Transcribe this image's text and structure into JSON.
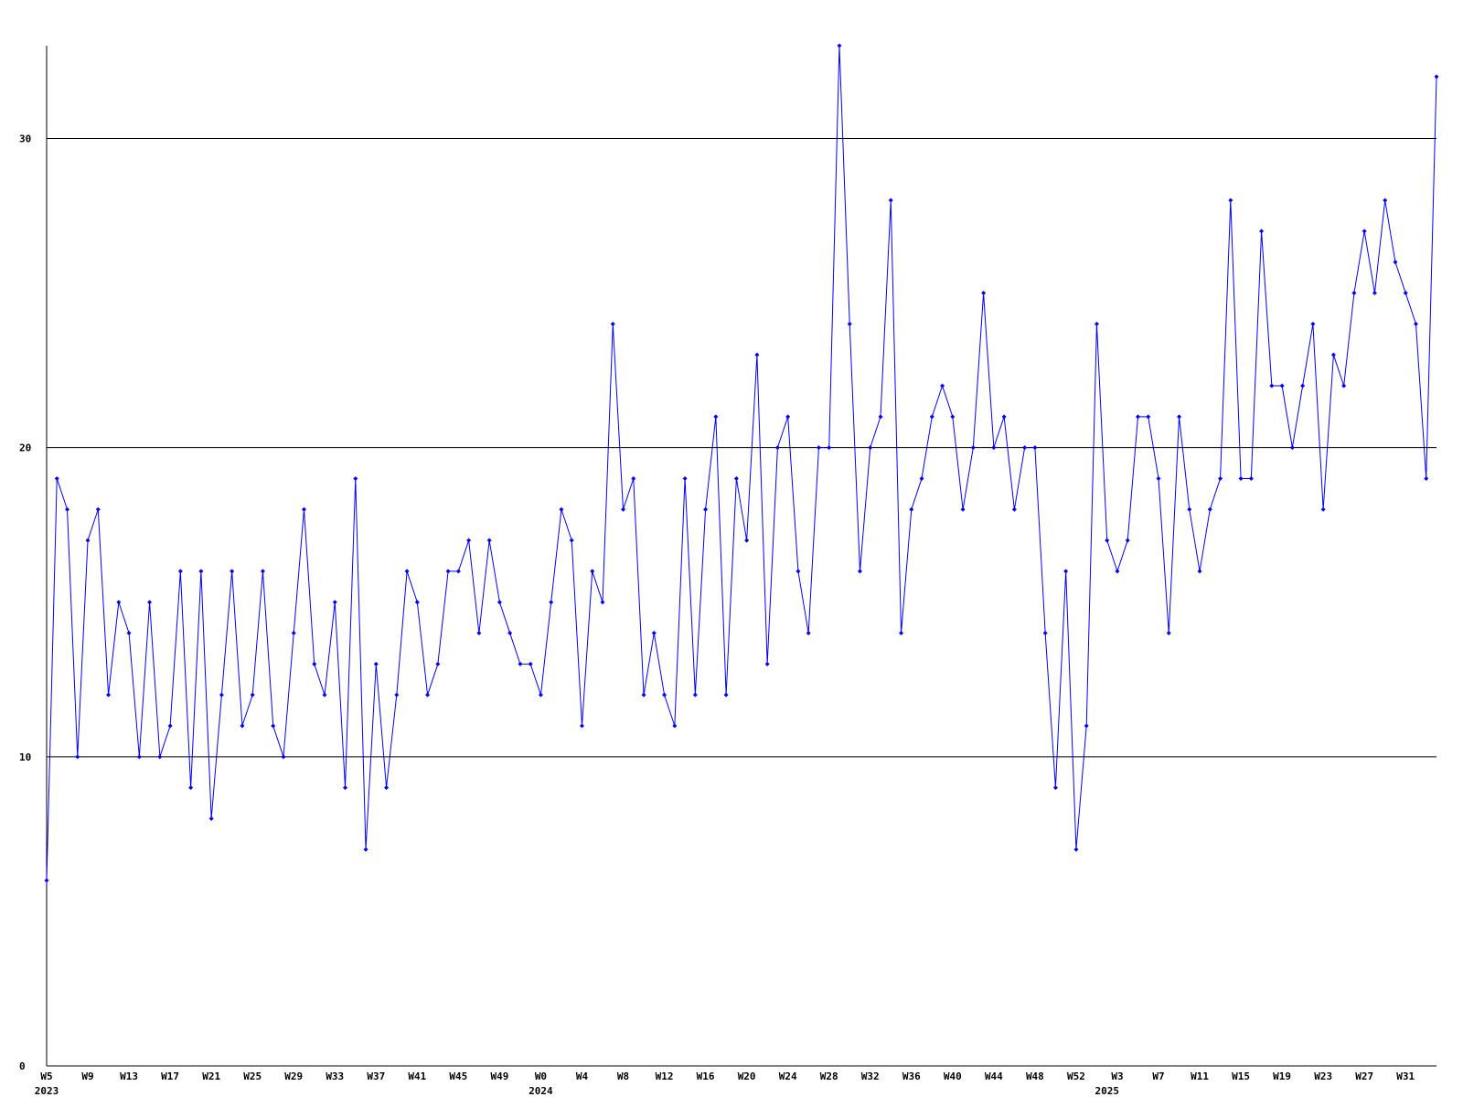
{
  "chart_data": {
    "type": "line",
    "categories": [
      "W5",
      null,
      null,
      null,
      "W9",
      null,
      null,
      null,
      "W13",
      null,
      null,
      null,
      "W17",
      null,
      null,
      null,
      "W21",
      null,
      null,
      null,
      "W25",
      null,
      null,
      null,
      "W29",
      null,
      null,
      null,
      "W33",
      null,
      null,
      null,
      "W37",
      null,
      null,
      null,
      "W41",
      null,
      null,
      null,
      "W45",
      null,
      null,
      null,
      "W49",
      null,
      null,
      null,
      "W0",
      null,
      null,
      null,
      "W4",
      null,
      null,
      null,
      "W8",
      null,
      null,
      null,
      "W12",
      null,
      null,
      null,
      "W16",
      null,
      null,
      null,
      "W20",
      null,
      null,
      null,
      "W24",
      null,
      null,
      null,
      "W28",
      null,
      null,
      null,
      "W32",
      null,
      null,
      null,
      "W36",
      null,
      null,
      null,
      "W40",
      null,
      null,
      null,
      "W44",
      null,
      null,
      null,
      "W48",
      null,
      null,
      null,
      "W52",
      null,
      null,
      null,
      "W3",
      null,
      null,
      null,
      "W7",
      null,
      null,
      null,
      "W11",
      null,
      null,
      null,
      "W15",
      null,
      null,
      null,
      "W19",
      null,
      null,
      null,
      "W23",
      null,
      null,
      null,
      "W27",
      null,
      null,
      null,
      "W31",
      null,
      null,
      null
    ],
    "years": [
      "2023",
      null,
      null,
      null,
      null,
      null,
      null,
      null,
      null,
      null,
      null,
      null,
      null,
      null,
      null,
      null,
      null,
      null,
      null,
      null,
      null,
      null,
      null,
      null,
      null,
      null,
      null,
      null,
      null,
      null,
      null,
      null,
      null,
      null,
      null,
      null,
      null,
      null,
      null,
      null,
      null,
      null,
      null,
      null,
      null,
      null,
      null,
      null,
      "2024",
      null,
      null,
      null,
      null,
      null,
      null,
      null,
      null,
      null,
      null,
      null,
      null,
      null,
      null,
      null,
      null,
      null,
      null,
      null,
      null,
      null,
      null,
      null,
      null,
      null,
      null,
      null,
      null,
      null,
      null,
      null,
      null,
      null,
      null,
      null,
      null,
      null,
      null,
      null,
      null,
      null,
      null,
      null,
      null,
      null,
      null,
      null,
      null,
      null,
      null,
      null,
      null,
      null,
      null,
      "2025",
      null,
      null,
      null,
      null,
      null,
      null,
      null,
      null,
      null,
      null,
      null,
      null,
      null,
      null,
      null,
      null,
      null,
      null,
      null,
      null,
      null,
      null,
      null,
      null,
      null,
      null,
      null,
      null,
      null,
      null,
      null,
      null,
      null,
      null
    ],
    "series": [
      {
        "color": "#0000ff",
        "values": [
          6,
          19,
          18,
          10,
          17,
          18,
          12,
          15,
          14,
          10,
          15,
          10,
          11,
          16,
          9,
          16,
          8,
          12,
          16,
          11,
          12,
          16,
          11,
          10,
          14,
          18,
          13,
          12,
          15,
          9,
          19,
          7,
          13,
          9,
          12,
          16,
          15,
          12,
          13,
          16,
          16,
          17,
          14,
          17,
          15,
          14,
          13,
          13,
          12,
          15,
          18,
          17,
          11,
          16,
          15,
          24,
          18,
          19,
          12,
          14,
          12,
          11,
          19,
          12,
          18,
          21,
          12,
          19,
          17,
          23,
          13,
          20,
          21,
          16,
          14,
          20,
          20,
          33,
          24,
          16,
          20,
          21,
          28,
          14,
          18,
          19,
          21,
          22,
          21,
          18,
          20,
          25,
          20,
          21,
          18,
          20,
          20,
          14,
          9,
          16,
          7,
          11,
          24,
          17,
          16,
          17,
          21,
          21,
          19,
          14,
          21,
          18,
          16,
          18,
          19,
          28,
          19,
          19,
          27,
          22,
          22,
          20,
          22,
          24,
          18,
          23,
          22,
          25,
          27,
          25,
          28,
          26,
          25,
          24,
          19,
          32
        ]
      }
    ],
    "ylim": [
      0,
      33
    ],
    "yticks": [
      0,
      10,
      20,
      30
    ],
    "grid": true
  }
}
